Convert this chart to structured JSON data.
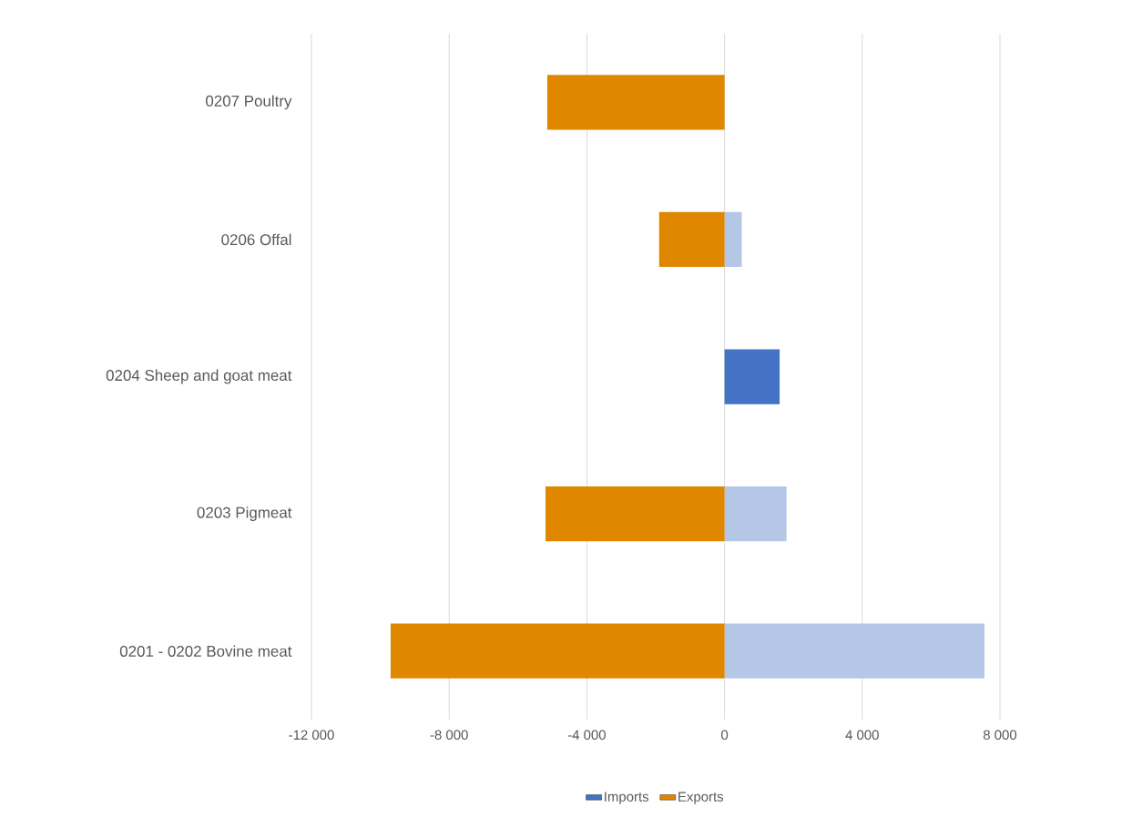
{
  "chart_data": {
    "type": "bar",
    "orientation": "horizontal",
    "stacked": true,
    "categories": [
      "0207 Poultry",
      "0206 Offal",
      "0204 Sheep and goat meat",
      "0203 Pigmeat",
      "0201 - 0202 Bovine meat"
    ],
    "series": [
      {
        "name": "Imports",
        "color": "#4472c4",
        "colors": [
          "#b4c7e7",
          "#b4c7e7",
          "#4472c4",
          "#b4c7e7",
          "#b4c7e7"
        ],
        "values": [
          0,
          500,
          1600,
          1800,
          7550
        ]
      },
      {
        "name": "Exports",
        "color": "#e08700",
        "values": [
          -5150,
          -1900,
          0,
          -5200,
          -9700
        ]
      }
    ],
    "xlim": [
      -12000,
      8000
    ],
    "xticks": [
      {
        "value": -12000,
        "label": "-12 000"
      },
      {
        "value": -8000,
        "label": "-8 000"
      },
      {
        "value": -4000,
        "label": "-4 000"
      },
      0,
      {
        "value": 4000,
        "label": "4 000"
      },
      {
        "value": 8000,
        "label": "8 000"
      }
    ],
    "grid": "x",
    "legend": "bottom"
  }
}
